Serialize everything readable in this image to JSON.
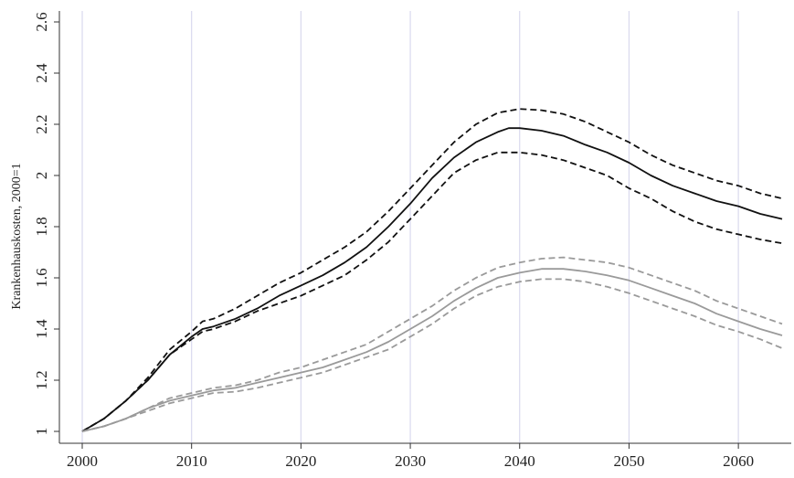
{
  "chart_data": {
    "type": "line",
    "title": "",
    "xlabel": "",
    "ylabel": "Krankenhauskosten, 2000=1",
    "xlim": [
      2000,
      2064
    ],
    "ylim": [
      1.0,
      2.6
    ],
    "x_ticks": [
      "2000",
      "2010",
      "2020",
      "2030",
      "2040",
      "2050",
      "2060"
    ],
    "y_ticks": [
      "1",
      "1.2",
      "1.4",
      "1.6",
      "1.8",
      "2",
      "2.2",
      "2.4",
      "2.6"
    ],
    "grid": "vertical",
    "colors": {
      "black": "#111111",
      "gray": "#9a9a9a",
      "grid": "#d9d9ee"
    },
    "series": [
      {
        "color": "#111111",
        "style": "solid",
        "points": [
          [
            2000,
            1.0
          ],
          [
            2002,
            1.05
          ],
          [
            2004,
            1.12
          ],
          [
            2006,
            1.2
          ],
          [
            2008,
            1.3
          ],
          [
            2010,
            1.37
          ],
          [
            2011,
            1.4
          ],
          [
            2012,
            1.41
          ],
          [
            2014,
            1.44
          ],
          [
            2016,
            1.48
          ],
          [
            2018,
            1.53
          ],
          [
            2020,
            1.57
          ],
          [
            2022,
            1.61
          ],
          [
            2024,
            1.66
          ],
          [
            2026,
            1.72
          ],
          [
            2028,
            1.8
          ],
          [
            2030,
            1.89
          ],
          [
            2032,
            1.99
          ],
          [
            2034,
            2.07
          ],
          [
            2036,
            2.13
          ],
          [
            2038,
            2.17
          ],
          [
            2039,
            2.185
          ],
          [
            2040,
            2.185
          ],
          [
            2042,
            2.175
          ],
          [
            2044,
            2.155
          ],
          [
            2046,
            2.12
          ],
          [
            2048,
            2.09
          ],
          [
            2050,
            2.05
          ],
          [
            2052,
            2.0
          ],
          [
            2054,
            1.96
          ],
          [
            2056,
            1.93
          ],
          [
            2058,
            1.9
          ],
          [
            2060,
            1.88
          ],
          [
            2062,
            1.85
          ],
          [
            2064,
            1.83
          ]
        ]
      },
      {
        "color": "#111111",
        "style": "dashed",
        "points": [
          [
            2000,
            1.0
          ],
          [
            2002,
            1.05
          ],
          [
            2004,
            1.12
          ],
          [
            2006,
            1.21
          ],
          [
            2008,
            1.32
          ],
          [
            2010,
            1.39
          ],
          [
            2011,
            1.43
          ],
          [
            2012,
            1.44
          ],
          [
            2014,
            1.48
          ],
          [
            2016,
            1.53
          ],
          [
            2018,
            1.58
          ],
          [
            2020,
            1.62
          ],
          [
            2022,
            1.67
          ],
          [
            2024,
            1.72
          ],
          [
            2026,
            1.78
          ],
          [
            2028,
            1.86
          ],
          [
            2030,
            1.95
          ],
          [
            2032,
            2.04
          ],
          [
            2034,
            2.13
          ],
          [
            2036,
            2.2
          ],
          [
            2038,
            2.245
          ],
          [
            2040,
            2.26
          ],
          [
            2042,
            2.255
          ],
          [
            2044,
            2.24
          ],
          [
            2046,
            2.21
          ],
          [
            2048,
            2.17
          ],
          [
            2050,
            2.13
          ],
          [
            2052,
            2.08
          ],
          [
            2054,
            2.04
          ],
          [
            2056,
            2.01
          ],
          [
            2058,
            1.98
          ],
          [
            2060,
            1.96
          ],
          [
            2062,
            1.93
          ],
          [
            2064,
            1.91
          ]
        ]
      },
      {
        "color": "#111111",
        "style": "dashed",
        "points": [
          [
            2000,
            1.0
          ],
          [
            2002,
            1.05
          ],
          [
            2004,
            1.12
          ],
          [
            2006,
            1.2
          ],
          [
            2008,
            1.3
          ],
          [
            2010,
            1.36
          ],
          [
            2011,
            1.39
          ],
          [
            2012,
            1.4
          ],
          [
            2014,
            1.43
          ],
          [
            2016,
            1.47
          ],
          [
            2018,
            1.5
          ],
          [
            2020,
            1.53
          ],
          [
            2022,
            1.57
          ],
          [
            2024,
            1.61
          ],
          [
            2026,
            1.67
          ],
          [
            2028,
            1.74
          ],
          [
            2030,
            1.83
          ],
          [
            2032,
            1.92
          ],
          [
            2034,
            2.01
          ],
          [
            2036,
            2.06
          ],
          [
            2038,
            2.09
          ],
          [
            2040,
            2.09
          ],
          [
            2042,
            2.08
          ],
          [
            2044,
            2.06
          ],
          [
            2046,
            2.03
          ],
          [
            2048,
            2.0
          ],
          [
            2050,
            1.95
          ],
          [
            2052,
            1.91
          ],
          [
            2054,
            1.86
          ],
          [
            2056,
            1.82
          ],
          [
            2058,
            1.79
          ],
          [
            2060,
            1.77
          ],
          [
            2062,
            1.75
          ],
          [
            2064,
            1.735
          ]
        ]
      },
      {
        "color": "#9a9a9a",
        "style": "solid",
        "points": [
          [
            2000,
            1.0
          ],
          [
            2002,
            1.02
          ],
          [
            2004,
            1.05
          ],
          [
            2006,
            1.09
          ],
          [
            2008,
            1.12
          ],
          [
            2010,
            1.14
          ],
          [
            2012,
            1.16
          ],
          [
            2014,
            1.17
          ],
          [
            2016,
            1.19
          ],
          [
            2018,
            1.21
          ],
          [
            2020,
            1.23
          ],
          [
            2022,
            1.25
          ],
          [
            2024,
            1.28
          ],
          [
            2026,
            1.31
          ],
          [
            2028,
            1.35
          ],
          [
            2030,
            1.4
          ],
          [
            2032,
            1.45
          ],
          [
            2034,
            1.51
          ],
          [
            2036,
            1.56
          ],
          [
            2038,
            1.6
          ],
          [
            2040,
            1.62
          ],
          [
            2042,
            1.635
          ],
          [
            2044,
            1.635
          ],
          [
            2046,
            1.625
          ],
          [
            2048,
            1.61
          ],
          [
            2050,
            1.59
          ],
          [
            2052,
            1.56
          ],
          [
            2054,
            1.53
          ],
          [
            2056,
            1.5
          ],
          [
            2058,
            1.46
          ],
          [
            2060,
            1.43
          ],
          [
            2062,
            1.4
          ],
          [
            2064,
            1.375
          ]
        ]
      },
      {
        "color": "#9a9a9a",
        "style": "dashed",
        "points": [
          [
            2000,
            1.0
          ],
          [
            2002,
            1.02
          ],
          [
            2004,
            1.05
          ],
          [
            2006,
            1.09
          ],
          [
            2008,
            1.13
          ],
          [
            2010,
            1.15
          ],
          [
            2012,
            1.17
          ],
          [
            2014,
            1.18
          ],
          [
            2016,
            1.2
          ],
          [
            2018,
            1.23
          ],
          [
            2020,
            1.25
          ],
          [
            2022,
            1.28
          ],
          [
            2024,
            1.31
          ],
          [
            2026,
            1.34
          ],
          [
            2028,
            1.39
          ],
          [
            2030,
            1.44
          ],
          [
            2032,
            1.49
          ],
          [
            2034,
            1.55
          ],
          [
            2036,
            1.6
          ],
          [
            2038,
            1.64
          ],
          [
            2040,
            1.66
          ],
          [
            2042,
            1.675
          ],
          [
            2044,
            1.68
          ],
          [
            2046,
            1.67
          ],
          [
            2048,
            1.66
          ],
          [
            2050,
            1.64
          ],
          [
            2052,
            1.61
          ],
          [
            2054,
            1.58
          ],
          [
            2056,
            1.55
          ],
          [
            2058,
            1.51
          ],
          [
            2060,
            1.48
          ],
          [
            2062,
            1.45
          ],
          [
            2064,
            1.42
          ]
        ]
      },
      {
        "color": "#9a9a9a",
        "style": "dashed",
        "points": [
          [
            2000,
            1.0
          ],
          [
            2002,
            1.02
          ],
          [
            2004,
            1.05
          ],
          [
            2006,
            1.08
          ],
          [
            2008,
            1.11
          ],
          [
            2010,
            1.13
          ],
          [
            2012,
            1.15
          ],
          [
            2014,
            1.155
          ],
          [
            2016,
            1.17
          ],
          [
            2018,
            1.19
          ],
          [
            2020,
            1.21
          ],
          [
            2022,
            1.23
          ],
          [
            2024,
            1.26
          ],
          [
            2026,
            1.29
          ],
          [
            2028,
            1.32
          ],
          [
            2030,
            1.37
          ],
          [
            2032,
            1.42
          ],
          [
            2034,
            1.48
          ],
          [
            2036,
            1.53
          ],
          [
            2038,
            1.565
          ],
          [
            2040,
            1.585
          ],
          [
            2042,
            1.595
          ],
          [
            2044,
            1.595
          ],
          [
            2046,
            1.585
          ],
          [
            2048,
            1.565
          ],
          [
            2050,
            1.54
          ],
          [
            2052,
            1.51
          ],
          [
            2054,
            1.48
          ],
          [
            2056,
            1.45
          ],
          [
            2058,
            1.415
          ],
          [
            2060,
            1.39
          ],
          [
            2062,
            1.36
          ],
          [
            2064,
            1.325
          ]
        ]
      }
    ]
  }
}
